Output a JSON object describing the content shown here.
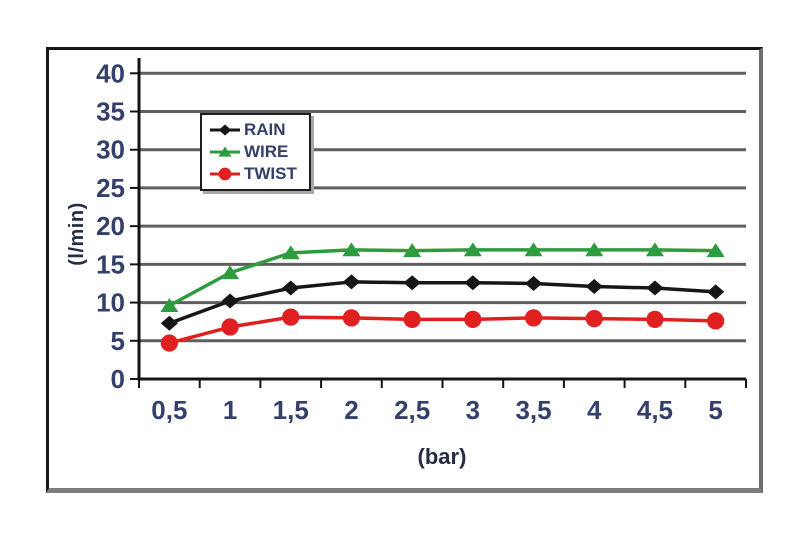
{
  "figure": {
    "background_color": "#ffffff",
    "frame_dark_color": "#161616",
    "frame_shadow_color": "#7d7d7d"
  },
  "chart_data": {
    "type": "line",
    "title": "",
    "xlabel": "(bar)",
    "ylabel": "(l/min)",
    "categories": [
      "0,5",
      "1",
      "1,5",
      "2",
      "2,5",
      "3",
      "3,5",
      "4",
      "4,5",
      "5"
    ],
    "x_values": [
      0.5,
      1,
      1.5,
      2,
      2.5,
      3,
      3.5,
      4,
      4.5,
      5
    ],
    "series": [
      {
        "name": "RAIN",
        "color": "#161616",
        "marker": "diamond",
        "values": [
          7.3,
          10.2,
          11.9,
          12.7,
          12.6,
          12.6,
          12.5,
          12.1,
          11.9,
          11.4
        ]
      },
      {
        "name": "WIRE",
        "color": "#2d9c3e",
        "marker": "triangle",
        "values": [
          9.6,
          13.9,
          16.5,
          16.9,
          16.8,
          16.9,
          16.9,
          16.9,
          16.9,
          16.8
        ]
      },
      {
        "name": "TWIST",
        "color": "#e02020",
        "marker": "circle",
        "values": [
          4.7,
          6.8,
          8.1,
          8.0,
          7.8,
          7.8,
          8.0,
          7.9,
          7.8,
          7.6
        ]
      }
    ],
    "ylim": [
      0,
      42
    ],
    "ytick_step": 5,
    "ytick_max": 40,
    "ytick_labels": [
      "0",
      "5",
      "10",
      "15",
      "20",
      "25",
      "30",
      "35",
      "40"
    ],
    "grid": "horizontal",
    "legend_position": "upper-left-inside",
    "gridline_color": "#5f5f5f",
    "axis_color": "#141414",
    "tick_label_color": "#35406a"
  }
}
